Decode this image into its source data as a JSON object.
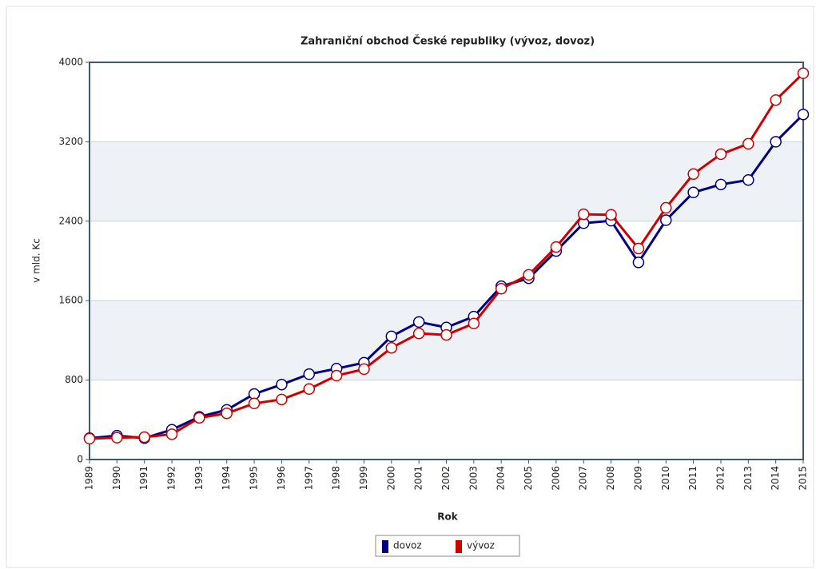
{
  "chart_data": {
    "type": "line",
    "title": "Zahraniční obchod České republiky (vývoz, dovoz)",
    "x_label": "Rok",
    "y_label": "v mld. Kc",
    "categories": [
      "1989",
      "1990",
      "1991",
      "1992",
      "1993",
      "1994",
      "1995",
      "1996",
      "1997",
      "1998",
      "1999",
      "2000",
      "2001",
      "2002",
      "2003",
      "2004",
      "2005",
      "2006",
      "2007",
      "2008",
      "2009",
      "2010",
      "2011",
      "2012",
      "2013",
      "2014",
      "2015"
    ],
    "series": [
      {
        "name": "dovoz",
        "color": "#000080",
        "values": [
          215,
          240,
          215,
          300,
          430,
          500,
          660,
          755,
          860,
          915,
          975,
          1240,
          1385,
          1330,
          1440,
          1745,
          1825,
          2100,
          2380,
          2405,
          1985,
          2410,
          2690,
          2770,
          2815,
          3200,
          3475
        ]
      },
      {
        "name": "vývoz",
        "color": "#cc0000",
        "values": [
          210,
          220,
          225,
          255,
          420,
          465,
          565,
          605,
          710,
          845,
          910,
          1125,
          1270,
          1255,
          1370,
          1720,
          1860,
          2140,
          2470,
          2465,
          2125,
          2535,
          2875,
          3075,
          3180,
          3620,
          3890
        ]
      }
    ],
    "ylim": [
      0,
      4000
    ],
    "yticks": [
      0,
      800,
      1600,
      2400,
      3200,
      4000
    ],
    "grid": true,
    "legend": "bottom"
  }
}
